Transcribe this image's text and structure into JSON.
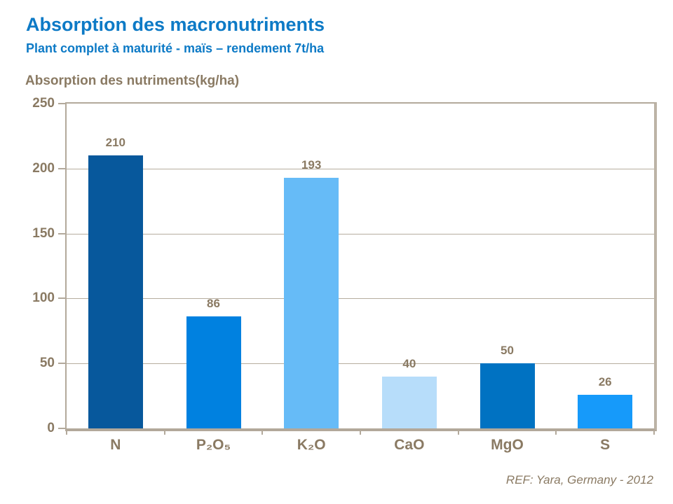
{
  "header": {
    "title": "Absorption des macronutriments",
    "subtitle": "Plant complet à maturité - maïs – rendement 7t/ha"
  },
  "footer": {
    "ref": "REF: Yara, Germany - 2012"
  },
  "colors": {
    "title_blue": "#0d7ac6",
    "text_brown": "#8a7a63",
    "axis_taupe": "#b3a99b"
  },
  "chart_data": {
    "type": "bar",
    "title": "Absorption des nutriments(kg/ha)",
    "categories": [
      "N",
      "P₂O₅",
      "K₂O",
      "CaO",
      "MgO",
      "S"
    ],
    "values": [
      210,
      86,
      193,
      40,
      50,
      26
    ],
    "bar_colors": [
      "#07589c",
      "#0081e0",
      "#66bbf7",
      "#b7ddfa",
      "#0072c2",
      "#169afa"
    ],
    "xlabel": "",
    "ylabel": "kg/ha",
    "ylim": [
      0,
      250
    ],
    "ytick_step": 50,
    "grid": true,
    "legend_position": "none",
    "value_labels": true
  }
}
